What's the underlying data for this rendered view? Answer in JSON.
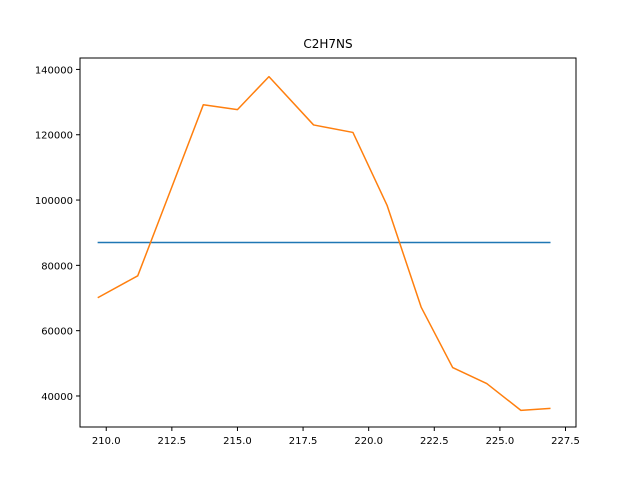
{
  "chart_data": {
    "type": "line",
    "title": "C2H7NS",
    "xlabel": "",
    "ylabel": "",
    "xlim": [
      209.0,
      227.9
    ],
    "ylim": [
      30500,
      143500
    ],
    "x_ticks": [
      210.0,
      212.5,
      215.0,
      217.5,
      220.0,
      222.5,
      225.0,
      227.5
    ],
    "x_tick_labels": [
      "210.0",
      "212.5",
      "215.0",
      "217.5",
      "220.0",
      "222.5",
      "225.0",
      "227.5"
    ],
    "y_ticks": [
      40000,
      60000,
      80000,
      100000,
      120000,
      140000
    ],
    "y_tick_labels": [
      "40000",
      "60000",
      "80000",
      "100000",
      "120000",
      "140000"
    ],
    "grid": false,
    "legend": "none",
    "series": [
      {
        "color": "#1f77b4",
        "x": [
          209.7,
          226.9
        ],
        "y": [
          87000,
          87000
        ]
      },
      {
        "color": "#ff7f0e",
        "x": [
          209.7,
          211.2,
          212.5,
          213.7,
          215.0,
          216.2,
          217.9,
          219.4,
          220.7,
          222.0,
          223.2,
          224.5,
          225.8,
          226.9
        ],
        "y": [
          70200,
          76800,
          104000,
          129200,
          127700,
          137800,
          123000,
          120700,
          98400,
          67200,
          48700,
          43800,
          35600,
          36200
        ]
      }
    ]
  }
}
